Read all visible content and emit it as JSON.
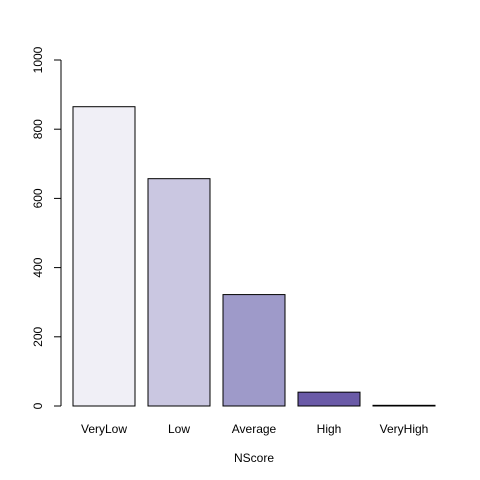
{
  "chart_data": {
    "type": "bar",
    "title": "",
    "xlabel": "NScore",
    "ylabel": "",
    "categories": [
      "VeryLow",
      "Low",
      "Average",
      "High",
      "VeryHigh"
    ],
    "values": [
      865,
      657,
      322,
      40,
      2
    ],
    "ylim": [
      0,
      1000
    ],
    "yticks": [
      0,
      200,
      400,
      600,
      800,
      1000
    ],
    "colors": [
      "#F0EFF6",
      "#CAC7E1",
      "#9E9AC9",
      "#6A5AA7",
      "#3F007D"
    ],
    "grid": false,
    "legend": "none"
  }
}
